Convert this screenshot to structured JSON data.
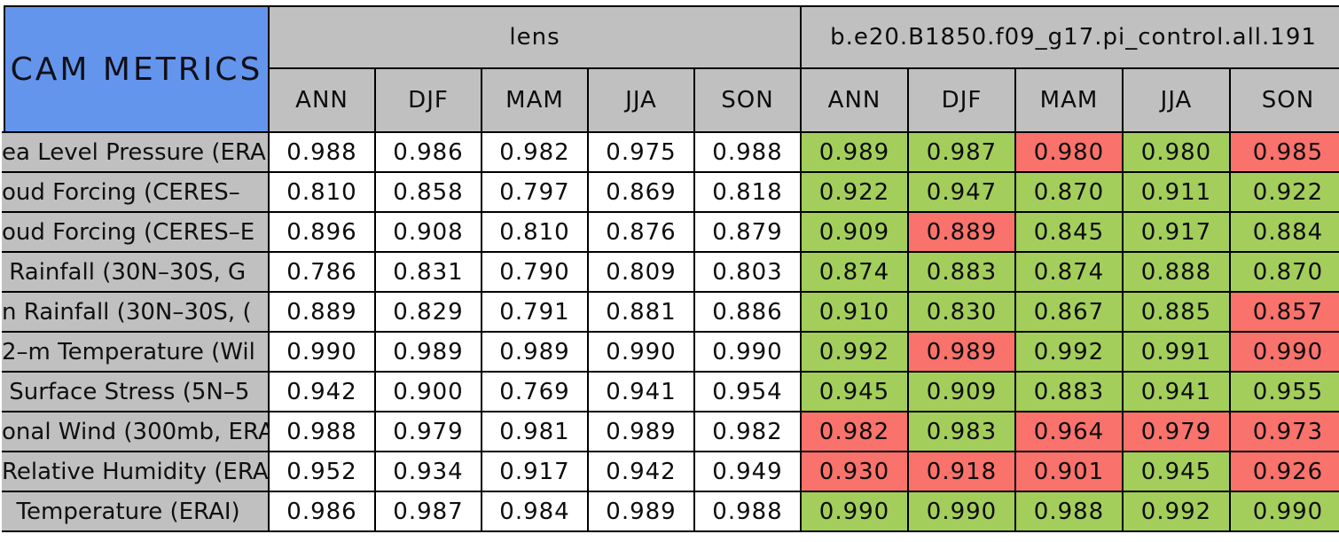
{
  "title": "CAM METRICS",
  "colors": {
    "header_blue": "#6495ED",
    "header_gray": "#C0C0C0",
    "value_white": "#FFFFFF",
    "good_green": "#A3CE5B",
    "bad_red": "#F9726B",
    "border_black": "#000000"
  },
  "chart_data": {
    "type": "table",
    "title": "CAM METRICS",
    "column_groups": [
      "lens",
      "b.e20.B1850.f09_g17.pi_control.all.191"
    ],
    "seasons": [
      "ANN",
      "DJF",
      "MAM",
      "JJA",
      "SON"
    ],
    "cell_color_legend": {
      "green": "control run value highlighted green",
      "red": "control run value highlighted red"
    },
    "rows": [
      {
        "label": "ea Level Pressure (ERA",
        "lens": [
          "0.988",
          "0.986",
          "0.982",
          "0.975",
          "0.988"
        ],
        "control": [
          "0.989",
          "0.987",
          "0.980",
          "0.980",
          "0.985"
        ],
        "control_colors": [
          "green",
          "green",
          "red",
          "green",
          "red"
        ]
      },
      {
        "label": "oud Forcing (CERES–",
        "lens": [
          "0.810",
          "0.858",
          "0.797",
          "0.869",
          "0.818"
        ],
        "control": [
          "0.922",
          "0.947",
          "0.870",
          "0.911",
          "0.922"
        ],
        "control_colors": [
          "green",
          "green",
          "green",
          "green",
          "green"
        ]
      },
      {
        "label": "oud Forcing (CERES–E",
        "lens": [
          "0.896",
          "0.908",
          "0.810",
          "0.876",
          "0.879"
        ],
        "control": [
          "0.909",
          "0.889",
          "0.845",
          "0.917",
          "0.884"
        ],
        "control_colors": [
          "green",
          "red",
          "green",
          "green",
          "green"
        ]
      },
      {
        "label": " Rainfall (30N–30S, G",
        "lens": [
          "0.786",
          "0.831",
          "0.790",
          "0.809",
          "0.803"
        ],
        "control": [
          "0.874",
          "0.883",
          "0.874",
          "0.888",
          "0.870"
        ],
        "control_colors": [
          "green",
          "green",
          "green",
          "green",
          "green"
        ]
      },
      {
        "label": "n Rainfall (30N–30S, (",
        "lens": [
          "0.889",
          "0.829",
          "0.791",
          "0.881",
          "0.886"
        ],
        "control": [
          "0.910",
          "0.830",
          "0.867",
          "0.885",
          "0.857"
        ],
        "control_colors": [
          "green",
          "green",
          "green",
          "green",
          "red"
        ]
      },
      {
        "label": "2–m Temperature (Wil",
        "lens": [
          "0.990",
          "0.989",
          "0.989",
          "0.990",
          "0.990"
        ],
        "control": [
          "0.992",
          "0.989",
          "0.992",
          "0.991",
          "0.990"
        ],
        "control_colors": [
          "green",
          "red",
          "green",
          "green",
          "red"
        ]
      },
      {
        "label": " Surface Stress (5N–5",
        "lens": [
          "0.942",
          "0.900",
          "0.769",
          "0.941",
          "0.954"
        ],
        "control": [
          "0.945",
          "0.909",
          "0.883",
          "0.941",
          "0.955"
        ],
        "control_colors": [
          "green",
          "green",
          "green",
          "green",
          "green"
        ]
      },
      {
        "label": "onal Wind (300mb, ERA",
        "lens": [
          "0.988",
          "0.979",
          "0.981",
          "0.989",
          "0.982"
        ],
        "control": [
          "0.982",
          "0.983",
          "0.964",
          "0.979",
          "0.973"
        ],
        "control_colors": [
          "red",
          "green",
          "red",
          "red",
          "red"
        ]
      },
      {
        "label": "Relative Humidity (ERAI",
        "lens": [
          "0.952",
          "0.934",
          "0.917",
          "0.942",
          "0.949"
        ],
        "control": [
          "0.930",
          "0.918",
          "0.901",
          "0.945",
          "0.926"
        ],
        "control_colors": [
          "red",
          "red",
          "red",
          "green",
          "red"
        ]
      },
      {
        "label": "  Temperature (ERAI)",
        "lens": [
          "0.986",
          "0.987",
          "0.984",
          "0.989",
          "0.988"
        ],
        "control": [
          "0.990",
          "0.990",
          "0.988",
          "0.992",
          "0.990"
        ],
        "control_colors": [
          "green",
          "green",
          "green",
          "green",
          "green"
        ]
      }
    ]
  }
}
